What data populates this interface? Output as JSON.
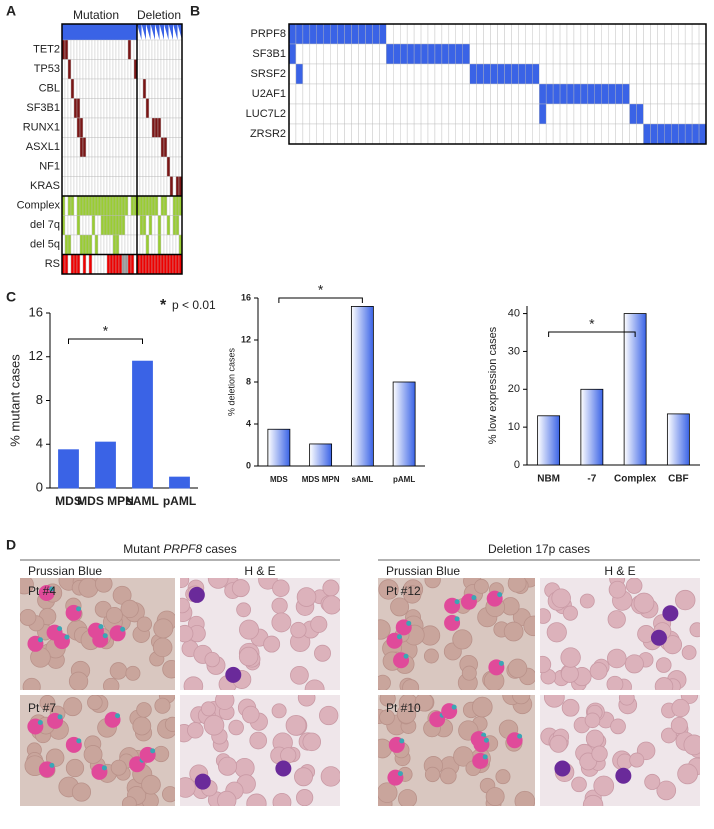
{
  "panel_labels": [
    "A",
    "B",
    "C",
    "D"
  ],
  "panel_a": {
    "column_groups": [
      "Mutation",
      "Deletion"
    ],
    "rows": [
      "TET2",
      "TP53",
      "CBL",
      "SF3B1",
      "RUNX1",
      "ASXL1",
      "NF1",
      "KRAS",
      "Complex",
      "del 7q",
      "del 5q",
      "RS"
    ]
  },
  "panel_b": {
    "rows": [
      "PRPF8",
      "SF3B1",
      "SRSF2",
      "U2AF1",
      "LUC7L2",
      "ZRSR2"
    ]
  },
  "chart_data": [
    {
      "type": "bar",
      "y_label": "% mutant cases",
      "categories": [
        "MDS",
        "MDS MPN",
        "sAML",
        "pAML"
      ],
      "values": [
        3.5,
        4.2,
        11.6,
        1.0
      ],
      "color": "#3a63e6",
      "gradient": false,
      "ylim": [
        0,
        16
      ],
      "yticks": [
        0,
        4,
        8,
        12,
        16
      ],
      "significance": "*",
      "note_marker": "*",
      "note": "p < 0.01"
    },
    {
      "type": "bar",
      "y_label": "% deletion cases",
      "categories": [
        "MDS",
        "MDS MPN",
        "sAML",
        "pAML"
      ],
      "values": [
        3.5,
        2.1,
        15.2,
        8.0
      ],
      "color": "#3a63e6",
      "gradient": true,
      "ylim": [
        0,
        16
      ],
      "yticks": [
        0,
        4,
        8,
        12,
        16
      ],
      "significance": "*"
    },
    {
      "type": "bar",
      "y_label": "% low expression cases",
      "categories": [
        "NBM",
        "-7",
        "Complex",
        "CBF"
      ],
      "values": [
        13,
        20,
        40,
        13.5
      ],
      "color": "#3a63e6",
      "gradient": true,
      "ylim": [
        0,
        42
      ],
      "yticks": [
        0,
        10,
        20,
        30,
        40
      ],
      "significance": "*"
    }
  ],
  "panel_d": {
    "groups": [
      {
        "title_parts": [
          "Mutant ",
          "PRPF8",
          " cases"
        ],
        "stains": [
          "Prussian Blue",
          "H & E"
        ],
        "patients": [
          "Pt #4",
          "Pt #7"
        ]
      },
      {
        "title_parts": [
          "Deletion 17p cases"
        ],
        "stains": [
          "Prussian Blue",
          "H & E"
        ],
        "patients": [
          "Pt #12",
          "Pt #10"
        ]
      }
    ]
  }
}
